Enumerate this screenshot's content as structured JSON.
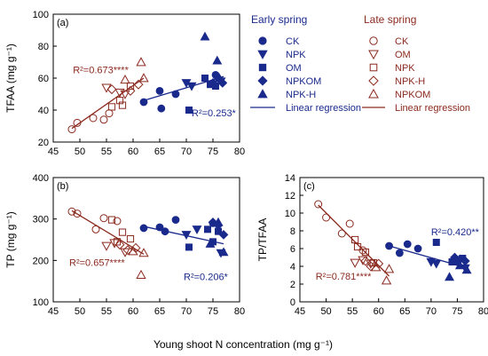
{
  "colors": {
    "early": "#1a2a8c",
    "late": "#8b2a1e",
    "axis": "#000000"
  },
  "x_axis_label": "Young shoot N concentration (mg g⁻¹)",
  "legend": {
    "early_title": "Early spring",
    "late_title": "Late spring",
    "early_entries": [
      {
        "label": "CK",
        "marker": "circle"
      },
      {
        "label": "NPK",
        "marker": "triangle-down"
      },
      {
        "label": "OM",
        "marker": "square"
      },
      {
        "label": "NPKOM",
        "marker": "diamond"
      },
      {
        "label": "NPK-H",
        "marker": "triangle-up"
      }
    ],
    "late_entries": [
      {
        "label": "CK",
        "marker": "circle"
      },
      {
        "label": "OM",
        "marker": "triangle-down"
      },
      {
        "label": "NPK",
        "marker": "square"
      },
      {
        "label": "NPK-H",
        "marker": "diamond"
      },
      {
        "label": "NPKOM",
        "marker": "triangle-up"
      }
    ],
    "line_label": "Linear regression"
  },
  "chart_data": [
    {
      "type": "scatter",
      "panel": "(a)",
      "ylabel": "TFAA (mg g⁻¹)",
      "xlim": [
        45,
        80
      ],
      "ylim": [
        20,
        100
      ],
      "xticks": [
        45,
        50,
        55,
        60,
        65,
        70,
        75,
        80
      ],
      "yticks": [
        20,
        40,
        60,
        80,
        100
      ],
      "show_x_tick_labels": true,
      "annotations": [
        {
          "text": "R²=0.673****",
          "series": "late",
          "x": 48.7,
          "y": 63
        },
        {
          "text": "R²=0.253*",
          "series": "early",
          "x": 71,
          "y": 36
        }
      ],
      "regressions": [
        {
          "series": "early",
          "x": [
            62,
            77
          ],
          "y": [
            46,
            61
          ]
        },
        {
          "series": "late",
          "x": [
            48.5,
            62
          ],
          "y": [
            28.5,
            60
          ]
        }
      ],
      "points": {
        "early": [
          {
            "m": "circle",
            "x": 62,
            "y": 45
          },
          {
            "m": "circle",
            "x": 65,
            "y": 52
          },
          {
            "m": "circle",
            "x": 65.3,
            "y": 41
          },
          {
            "m": "circle",
            "x": 68,
            "y": 50
          },
          {
            "m": "circle",
            "x": 75.5,
            "y": 62
          },
          {
            "m": "triangle-down",
            "x": 70,
            "y": 57
          },
          {
            "m": "triangle-down",
            "x": 71,
            "y": 55
          },
          {
            "m": "triangle-down",
            "x": 76.5,
            "y": 58
          },
          {
            "m": "square",
            "x": 70.5,
            "y": 40
          },
          {
            "m": "square",
            "x": 73.5,
            "y": 60
          },
          {
            "m": "square",
            "x": 74.5,
            "y": 56
          },
          {
            "m": "square",
            "x": 75.5,
            "y": 55
          },
          {
            "m": "diamond",
            "x": 75,
            "y": 57
          },
          {
            "m": "diamond",
            "x": 76,
            "y": 60
          },
          {
            "m": "diamond",
            "x": 76.8,
            "y": 57
          },
          {
            "m": "triangle-up",
            "x": 73.5,
            "y": 86
          },
          {
            "m": "triangle-up",
            "x": 75.8,
            "y": 71
          },
          {
            "m": "triangle-up",
            "x": 76.2,
            "y": 60
          }
        ],
        "late": [
          {
            "m": "circle",
            "x": 48.5,
            "y": 28
          },
          {
            "m": "circle",
            "x": 49.5,
            "y": 32
          },
          {
            "m": "circle",
            "x": 52.5,
            "y": 35
          },
          {
            "m": "circle",
            "x": 54.5,
            "y": 34
          },
          {
            "m": "circle",
            "x": 55.5,
            "y": 38
          },
          {
            "m": "triangle-down",
            "x": 55,
            "y": 54
          },
          {
            "m": "triangle-down",
            "x": 57.5,
            "y": 51
          },
          {
            "m": "triangle-down",
            "x": 58.5,
            "y": 50
          },
          {
            "m": "square",
            "x": 56,
            "y": 42
          },
          {
            "m": "square",
            "x": 57.5,
            "y": 46
          },
          {
            "m": "square",
            "x": 58,
            "y": 43
          },
          {
            "m": "square",
            "x": 59.5,
            "y": 55
          },
          {
            "m": "diamond",
            "x": 56,
            "y": 53
          },
          {
            "m": "diamond",
            "x": 59.5,
            "y": 52
          },
          {
            "m": "diamond",
            "x": 61,
            "y": 56
          },
          {
            "m": "triangle-up",
            "x": 58.5,
            "y": 59
          },
          {
            "m": "triangle-up",
            "x": 61.5,
            "y": 70
          },
          {
            "m": "triangle-up",
            "x": 62,
            "y": 60
          }
        ]
      }
    },
    {
      "type": "scatter",
      "panel": "(b)",
      "ylabel": "TP (mg g⁻¹)",
      "xlim": [
        45,
        80
      ],
      "ylim": [
        100,
        400
      ],
      "xticks": [
        45,
        50,
        55,
        60,
        65,
        70,
        75,
        80
      ],
      "yticks": [
        100,
        200,
        300,
        400
      ],
      "show_x_tick_labels": true,
      "annotations": [
        {
          "text": "R²=0.657****",
          "series": "late",
          "x": 48,
          "y": 187
        },
        {
          "text": "R²=0.206*",
          "series": "early",
          "x": 69.5,
          "y": 152
        }
      ],
      "regressions": [
        {
          "series": "early",
          "x": [
            62,
            77
          ],
          "y": [
            282,
            240
          ]
        },
        {
          "series": "late",
          "x": [
            48.5,
            62
          ],
          "y": [
            320,
            215
          ]
        }
      ],
      "points": {
        "early": [
          {
            "m": "circle",
            "x": 62,
            "y": 278
          },
          {
            "m": "circle",
            "x": 65,
            "y": 280
          },
          {
            "m": "circle",
            "x": 66,
            "y": 270
          },
          {
            "m": "circle",
            "x": 68,
            "y": 298
          },
          {
            "m": "circle",
            "x": 75,
            "y": 290
          },
          {
            "m": "triangle-down",
            "x": 70,
            "y": 262
          },
          {
            "m": "triangle-down",
            "x": 72,
            "y": 275
          },
          {
            "m": "triangle-down",
            "x": 76.5,
            "y": 218
          },
          {
            "m": "square",
            "x": 70.5,
            "y": 232
          },
          {
            "m": "square",
            "x": 74,
            "y": 275
          },
          {
            "m": "square",
            "x": 75,
            "y": 245
          },
          {
            "m": "square",
            "x": 76,
            "y": 270
          },
          {
            "m": "diamond",
            "x": 75,
            "y": 292
          },
          {
            "m": "diamond",
            "x": 76,
            "y": 285
          },
          {
            "m": "diamond",
            "x": 77,
            "y": 262
          },
          {
            "m": "triangle-up",
            "x": 74.5,
            "y": 240
          },
          {
            "m": "triangle-up",
            "x": 76,
            "y": 292
          },
          {
            "m": "triangle-up",
            "x": 77,
            "y": 220
          }
        ],
        "late": [
          {
            "m": "circle",
            "x": 48.5,
            "y": 318
          },
          {
            "m": "circle",
            "x": 49.5,
            "y": 313
          },
          {
            "m": "circle",
            "x": 53,
            "y": 275
          },
          {
            "m": "circle",
            "x": 54.5,
            "y": 302
          },
          {
            "m": "circle",
            "x": 57,
            "y": 295
          },
          {
            "m": "triangle-down",
            "x": 55,
            "y": 235
          },
          {
            "m": "triangle-down",
            "x": 56.5,
            "y": 242
          },
          {
            "m": "triangle-down",
            "x": 58.5,
            "y": 220
          },
          {
            "m": "square",
            "x": 56,
            "y": 298
          },
          {
            "m": "square",
            "x": 57,
            "y": 245
          },
          {
            "m": "square",
            "x": 58,
            "y": 268
          },
          {
            "m": "square",
            "x": 59.5,
            "y": 252
          },
          {
            "m": "diamond",
            "x": 57.5,
            "y": 238
          },
          {
            "m": "diamond",
            "x": 59,
            "y": 225
          },
          {
            "m": "diamond",
            "x": 60.5,
            "y": 230
          },
          {
            "m": "triangle-up",
            "x": 60,
            "y": 222
          },
          {
            "m": "triangle-up",
            "x": 61.5,
            "y": 165
          },
          {
            "m": "triangle-up",
            "x": 62,
            "y": 218
          }
        ]
      }
    },
    {
      "type": "scatter",
      "panel": "(c)",
      "ylabel": "TP/TFAA",
      "xlim": [
        45,
        80
      ],
      "ylim": [
        0,
        14
      ],
      "xticks": [
        45,
        50,
        55,
        60,
        65,
        70,
        75,
        80
      ],
      "yticks": [
        0,
        2,
        4,
        6,
        8,
        10,
        12,
        14
      ],
      "show_x_tick_labels": true,
      "annotations": [
        {
          "text": "R²=0.420**",
          "series": "early",
          "x": 70,
          "y": 7.5
        },
        {
          "text": "R²=0.781****",
          "series": "late",
          "x": 48,
          "y": 2.5
        }
      ],
      "regressions": [
        {
          "series": "early",
          "x": [
            62,
            77
          ],
          "y": [
            6.3,
            3.8
          ]
        },
        {
          "series": "late",
          "x": [
            48.5,
            62
          ],
          "y": [
            10.9,
            2.9
          ]
        }
      ],
      "points": {
        "early": [
          {
            "m": "circle",
            "x": 62,
            "y": 6.3
          },
          {
            "m": "circle",
            "x": 64,
            "y": 5.5
          },
          {
            "m": "circle",
            "x": 65.5,
            "y": 6.5
          },
          {
            "m": "circle",
            "x": 67.5,
            "y": 6.0
          },
          {
            "m": "circle",
            "x": 75,
            "y": 4.5
          },
          {
            "m": "triangle-down",
            "x": 70,
            "y": 4.5
          },
          {
            "m": "triangle-down",
            "x": 71,
            "y": 4.3
          },
          {
            "m": "triangle-down",
            "x": 76.5,
            "y": 3.8
          },
          {
            "m": "square",
            "x": 71,
            "y": 6.7
          },
          {
            "m": "square",
            "x": 74,
            "y": 4.5
          },
          {
            "m": "square",
            "x": 75,
            "y": 4.6
          },
          {
            "m": "square",
            "x": 76,
            "y": 4.9
          },
          {
            "m": "diamond",
            "x": 74.5,
            "y": 5.0
          },
          {
            "m": "diamond",
            "x": 75.5,
            "y": 4.8
          },
          {
            "m": "diamond",
            "x": 76.5,
            "y": 4.6
          },
          {
            "m": "triangle-up",
            "x": 73.5,
            "y": 2.8
          },
          {
            "m": "triangle-up",
            "x": 75.5,
            "y": 4.1
          },
          {
            "m": "triangle-up",
            "x": 76.8,
            "y": 3.6
          }
        ],
        "late": [
          {
            "m": "circle",
            "x": 48.5,
            "y": 11.0
          },
          {
            "m": "circle",
            "x": 50,
            "y": 9.5
          },
          {
            "m": "circle",
            "x": 53,
            "y": 7.7
          },
          {
            "m": "circle",
            "x": 54.5,
            "y": 8.8
          },
          {
            "m": "circle",
            "x": 57,
            "y": 5.8
          },
          {
            "m": "triangle-down",
            "x": 55.5,
            "y": 4.4
          },
          {
            "m": "triangle-down",
            "x": 57,
            "y": 4.7
          },
          {
            "m": "triangle-down",
            "x": 58.5,
            "y": 4.3
          },
          {
            "m": "square",
            "x": 55.5,
            "y": 7.0
          },
          {
            "m": "square",
            "x": 56,
            "y": 6.2
          },
          {
            "m": "square",
            "x": 57.5,
            "y": 5.6
          },
          {
            "m": "square",
            "x": 59,
            "y": 4.4
          },
          {
            "m": "diamond",
            "x": 57.5,
            "y": 4.6
          },
          {
            "m": "diamond",
            "x": 58.5,
            "y": 4.0
          },
          {
            "m": "diamond",
            "x": 60,
            "y": 4.3
          },
          {
            "m": "triangle-up",
            "x": 59.5,
            "y": 3.9
          },
          {
            "m": "triangle-up",
            "x": 61.5,
            "y": 2.4
          },
          {
            "m": "triangle-up",
            "x": 62,
            "y": 3.7
          }
        ]
      }
    }
  ]
}
